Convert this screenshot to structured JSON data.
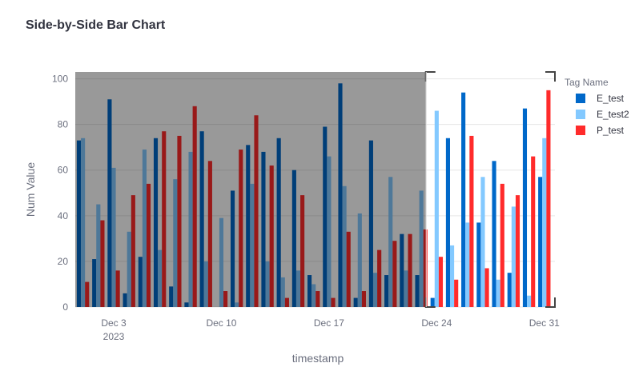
{
  "chart_data": {
    "type": "bar",
    "title": "Side-by-Side Bar Chart",
    "x_label": "timestamp",
    "y_label": "Num Value",
    "legend_title": "Tag Name",
    "x": [
      "2023-12-01",
      "2023-12-02",
      "2023-12-03",
      "2023-12-04",
      "2023-12-05",
      "2023-12-06",
      "2023-12-07",
      "2023-12-08",
      "2023-12-09",
      "2023-12-10",
      "2023-12-11",
      "2023-12-12",
      "2023-12-13",
      "2023-12-14",
      "2023-12-15",
      "2023-12-16",
      "2023-12-17",
      "2023-12-18",
      "2023-12-19",
      "2023-12-20",
      "2023-12-21",
      "2023-12-22",
      "2023-12-23",
      "2023-12-24",
      "2023-12-25",
      "2023-12-26",
      "2023-12-27",
      "2023-12-28",
      "2023-12-29",
      "2023-12-30",
      "2023-12-31"
    ],
    "series": [
      {
        "name": "E_test",
        "color": "#0068c9",
        "values": [
          73,
          21,
          91,
          6,
          22,
          74,
          9,
          2,
          77,
          0,
          51,
          71,
          68,
          74,
          60,
          14,
          79,
          98,
          4,
          73,
          14,
          32,
          14,
          4,
          74,
          94,
          37,
          64,
          15,
          87,
          57
        ]
      },
      {
        "name": "E_test2",
        "color": "#83c9ff",
        "values": [
          74,
          45,
          61,
          33,
          69,
          25,
          56,
          68,
          20,
          39,
          2,
          54,
          20,
          13,
          16,
          10,
          66,
          53,
          41,
          15,
          57,
          16,
          51,
          86,
          27,
          37,
          57,
          12,
          44,
          5,
          74
        ]
      },
      {
        "name": "P_test",
        "color": "#ff2b2b",
        "values": [
          11,
          38,
          16,
          49,
          54,
          77,
          75,
          88,
          64,
          7,
          69,
          84,
          62,
          4,
          49,
          7,
          4,
          33,
          7,
          25,
          29,
          32,
          34,
          22,
          12,
          75,
          17,
          54,
          49,
          66,
          95
        ]
      }
    ],
    "xlim": [
      "2023-11-30T12:00",
      "2023-12-31T16:30"
    ],
    "xticks": [
      {
        "value": "2023-12-03",
        "label": "Dec 3"
      },
      {
        "value": "2023-12-10",
        "label": "Dec 10"
      },
      {
        "value": "2023-12-17",
        "label": "Dec 17"
      },
      {
        "value": "2023-12-24",
        "label": "Dec 24"
      },
      {
        "value": "2023-12-31",
        "label": "Dec 31"
      }
    ],
    "x_year_label": "2023",
    "ylim": [
      0,
      103
    ],
    "yticks": [
      0,
      20,
      40,
      60,
      80,
      100
    ],
    "grid": true,
    "selected_range": [
      "2023-12-23T07:00",
      "2023-12-31T16:30"
    ],
    "legend": "right"
  }
}
